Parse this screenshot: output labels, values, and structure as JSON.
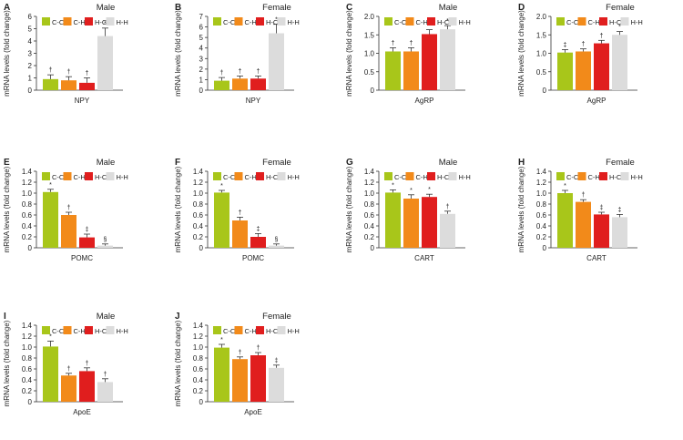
{
  "colors": {
    "C-C": "#a8c61a",
    "C-H": "#f28a1a",
    "H-C": "#e01e1e",
    "H-H": "#dcdcdc",
    "axis": "#333333",
    "text": "#222222"
  },
  "legend_labels": [
    "C-C",
    "C-H",
    "H-C",
    "H-H"
  ],
  "ylabel": "mRNA levels (fold change)",
  "chart_data": [
    {
      "letter": "A",
      "type": "bar",
      "title": "Male",
      "xlabel": "NPY",
      "ylabel": "mRNA levels (fold change)",
      "ylim": [
        0,
        6
      ],
      "yticks": [
        0,
        1,
        2,
        3,
        4,
        5,
        6
      ],
      "tick_labels": [
        "0",
        "1",
        "2",
        "3",
        "4",
        "5",
        "6"
      ],
      "categories": [
        "C-C",
        "C-H",
        "H-C",
        "H-H"
      ],
      "values": [
        0.9,
        0.8,
        0.6,
        4.4
      ],
      "errors": [
        0.35,
        0.3,
        0.4,
        0.65
      ],
      "annotations": [
        "†",
        "†",
        "†",
        "*"
      ]
    },
    {
      "letter": "B",
      "type": "bar",
      "title": "Female",
      "xlabel": "NPY",
      "ylabel": "mRNA levels (fold change)",
      "ylim": [
        0,
        7
      ],
      "yticks": [
        0,
        1,
        2,
        3,
        4,
        5,
        6,
        7
      ],
      "tick_labels": [
        "0",
        "1",
        "2",
        "3",
        "4",
        "5",
        "6",
        "7"
      ],
      "categories": [
        "C-C",
        "C-H",
        "H-C",
        "H-H"
      ],
      "values": [
        0.9,
        1.1,
        1.1,
        5.4
      ],
      "errors": [
        0.3,
        0.25,
        0.25,
        0.85
      ],
      "annotations": [
        "†",
        "†",
        "†",
        "*"
      ]
    },
    {
      "letter": "C",
      "type": "bar",
      "title": "Male",
      "xlabel": "AgRP",
      "ylabel": "mRNA levels (fold change)",
      "ylim": [
        0,
        2.0
      ],
      "yticks": [
        0,
        0.5,
        1.0,
        1.5,
        2.0
      ],
      "tick_labels": [
        "0",
        "0.5",
        "1.0",
        "1.5",
        "2.0"
      ],
      "categories": [
        "C-C",
        "C-H",
        "H-C",
        "H-H"
      ],
      "values": [
        1.05,
        1.05,
        1.52,
        1.65
      ],
      "errors": [
        0.1,
        0.1,
        0.12,
        0.1
      ],
      "annotations": [
        "†",
        "†",
        "*",
        "*"
      ]
    },
    {
      "letter": "D",
      "type": "bar",
      "title": "Female",
      "xlabel": "AgRP",
      "ylabel": "mRNA levels (fold change)",
      "ylim": [
        0,
        2.0
      ],
      "yticks": [
        0,
        0.5,
        1.0,
        1.5,
        2.0
      ],
      "tick_labels": [
        "0",
        "0.5",
        "1.0",
        "1.5",
        "2.0"
      ],
      "categories": [
        "C-C",
        "C-H",
        "H-C",
        "H-H"
      ],
      "values": [
        1.02,
        1.05,
        1.27,
        1.5
      ],
      "errors": [
        0.08,
        0.07,
        0.08,
        0.09
      ],
      "annotations": [
        "‡",
        "†",
        "†",
        "*"
      ]
    },
    {
      "letter": "E",
      "type": "bar",
      "title": "Male",
      "xlabel": "POMC",
      "ylabel": "mRNA levels (fold change)",
      "ylim": [
        0,
        1.4
      ],
      "yticks": [
        0,
        0.2,
        0.4,
        0.6,
        0.8,
        1.0,
        1.2,
        1.4
      ],
      "tick_labels": [
        "0",
        "0.2",
        "0.4",
        "0.6",
        "0.8",
        "1.0",
        "1.2",
        "1.4"
      ],
      "categories": [
        "C-C",
        "C-H",
        "H-C",
        "H-H"
      ],
      "values": [
        1.02,
        0.6,
        0.19,
        0.04
      ],
      "errors": [
        0.05,
        0.05,
        0.06,
        0.03
      ],
      "annotations": [
        "*",
        "†",
        "‡",
        "§"
      ]
    },
    {
      "letter": "F",
      "type": "bar",
      "title": "Female",
      "xlabel": "POMC",
      "ylabel": "mRNA levels (fold change)",
      "ylim": [
        0,
        1.4
      ],
      "yticks": [
        0,
        0.2,
        0.4,
        0.6,
        0.8,
        1.0,
        1.2,
        1.4
      ],
      "tick_labels": [
        "0",
        "0.2",
        "0.4",
        "0.6",
        "0.8",
        "1.0",
        "1.2",
        "1.4"
      ],
      "categories": [
        "C-C",
        "C-H",
        "H-C",
        "H-H"
      ],
      "values": [
        1.01,
        0.5,
        0.2,
        0.04
      ],
      "errors": [
        0.04,
        0.06,
        0.06,
        0.03
      ],
      "annotations": [
        "*",
        "†",
        "‡",
        "§"
      ]
    },
    {
      "letter": "G",
      "type": "bar",
      "title": "Male",
      "xlabel": "CART",
      "ylabel": "mRNA levels (fold change)",
      "ylim": [
        0,
        1.4
      ],
      "yticks": [
        0,
        0.2,
        0.4,
        0.6,
        0.8,
        1.0,
        1.2,
        1.4
      ],
      "tick_labels": [
        "0",
        "0.2",
        "0.4",
        "0.6",
        "0.8",
        "1.0",
        "1.2",
        "1.4"
      ],
      "categories": [
        "C-C",
        "C-H",
        "H-C",
        "H-H"
      ],
      "values": [
        1.01,
        0.9,
        0.93,
        0.62
      ],
      "errors": [
        0.05,
        0.07,
        0.05,
        0.05
      ],
      "annotations": [
        "*",
        "*",
        "*",
        "†"
      ]
    },
    {
      "letter": "H",
      "type": "bar",
      "title": "Female",
      "xlabel": "CART",
      "ylabel": "mRNA levels (fold change)",
      "ylim": [
        0,
        1.4
      ],
      "yticks": [
        0,
        0.2,
        0.4,
        0.6,
        0.8,
        1.0,
        1.2,
        1.4
      ],
      "tick_labels": [
        "0",
        "0.2",
        "0.4",
        "0.6",
        "0.8",
        "1.0",
        "1.2",
        "1.4"
      ],
      "categories": [
        "C-C",
        "C-H",
        "H-C",
        "H-H"
      ],
      "values": [
        1.0,
        0.84,
        0.61,
        0.56
      ],
      "errors": [
        0.05,
        0.04,
        0.04,
        0.05
      ],
      "annotations": [
        "*",
        "†",
        "‡",
        "‡"
      ]
    },
    {
      "letter": "I",
      "type": "bar",
      "title": "Male",
      "xlabel": "ApoE",
      "ylabel": "mRNA levels (fold change)",
      "ylim": [
        0,
        1.4
      ],
      "yticks": [
        0,
        0.2,
        0.4,
        0.6,
        0.8,
        1.0,
        1.2,
        1.4
      ],
      "tick_labels": [
        "0",
        "0.2",
        "0.4",
        "0.6",
        "0.8",
        "1.0",
        "1.2",
        "1.4"
      ],
      "categories": [
        "C-C",
        "C-H",
        "H-C",
        "H-H"
      ],
      "values": [
        1.01,
        0.48,
        0.56,
        0.36
      ],
      "errors": [
        0.1,
        0.04,
        0.06,
        0.06
      ],
      "annotations": [
        "*",
        "†",
        "†",
        "†"
      ]
    },
    {
      "letter": "J",
      "type": "bar",
      "title": "Female",
      "xlabel": "ApoE",
      "ylabel": "mRNA levels (fold change)",
      "ylim": [
        0,
        1.4
      ],
      "yticks": [
        0,
        0.2,
        0.4,
        0.6,
        0.8,
        1.0,
        1.2,
        1.4
      ],
      "tick_labels": [
        "0",
        "0.2",
        "0.4",
        "0.6",
        "0.8",
        "1.0",
        "1.2",
        "1.4"
      ],
      "categories": [
        "C-C",
        "C-H",
        "H-C",
        "H-H"
      ],
      "values": [
        0.99,
        0.78,
        0.85,
        0.62
      ],
      "errors": [
        0.06,
        0.04,
        0.05,
        0.05
      ],
      "annotations": [
        "*",
        "†",
        "†",
        "‡"
      ]
    }
  ]
}
